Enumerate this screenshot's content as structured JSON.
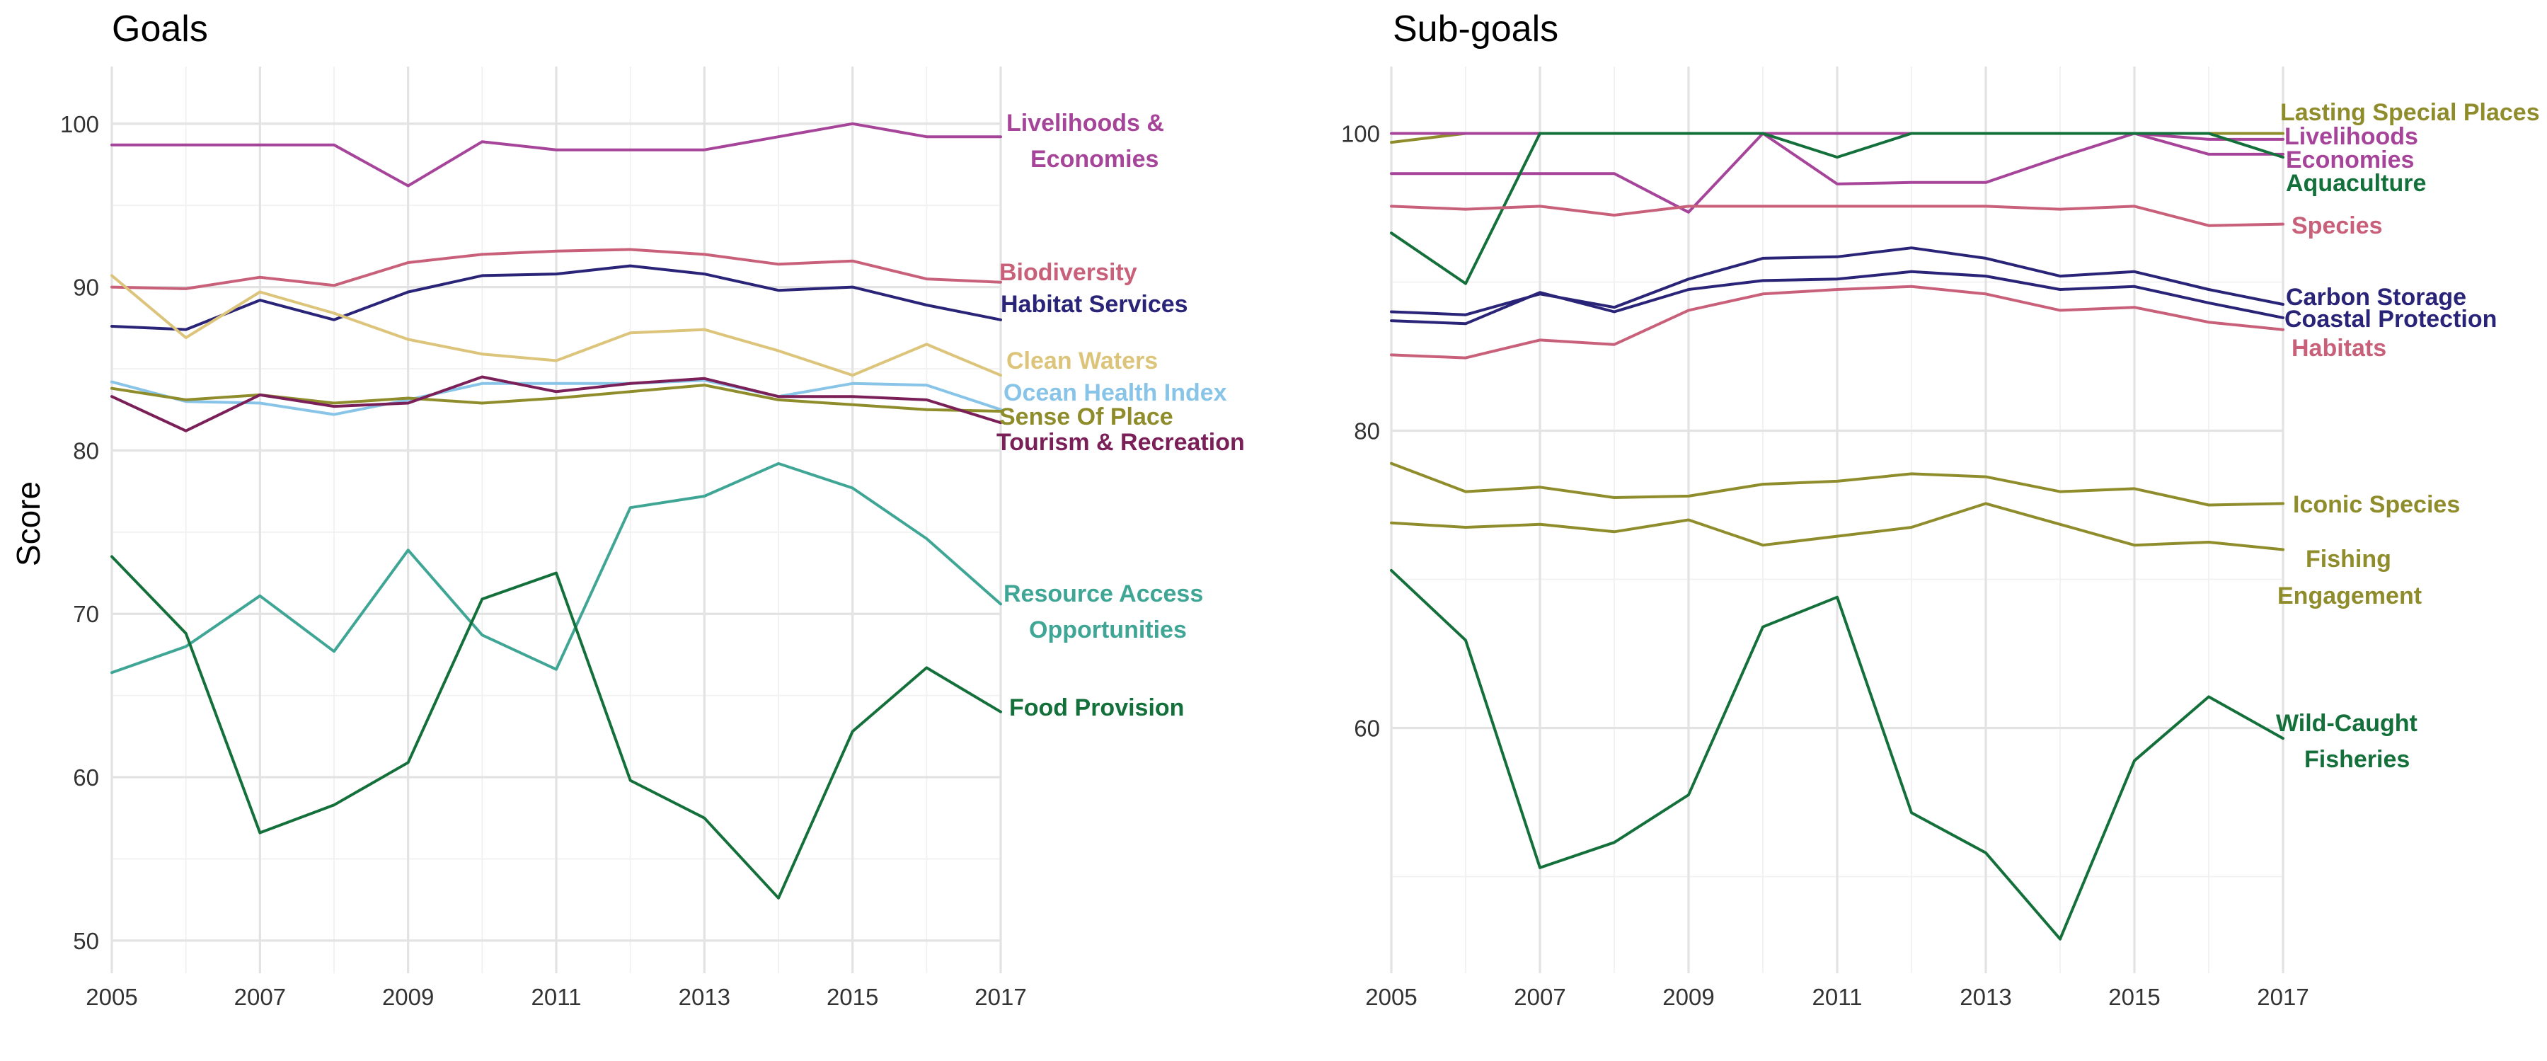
{
  "y_axis_label": "Score",
  "chart_data": [
    {
      "type": "line",
      "title": "Goals",
      "xlabel": "",
      "ylabel": "Score",
      "x": [
        2005,
        2006,
        2007,
        2008,
        2009,
        2010,
        2011,
        2012,
        2013,
        2014,
        2015,
        2016,
        2017
      ],
      "xticks": [
        2005,
        2007,
        2009,
        2011,
        2013,
        2015,
        2017
      ],
      "xtick_labels": [
        "2005",
        "2007",
        "2009",
        "2011",
        "2013",
        "2015",
        "2017"
      ],
      "yticks": [
        50,
        60,
        70,
        80,
        90,
        100
      ],
      "ytick_labels": [
        "50",
        "60",
        "70",
        "80",
        "90",
        "100"
      ],
      "xlim": [
        2005,
        2017
      ],
      "ylim": [
        48,
        103.5
      ],
      "grid": true,
      "legend": "direct labels at right end of lines",
      "series": [
        {
          "name": "Livelihoods & Economies",
          "label_lines": [
            "Livelihoods &",
            "Economies"
          ],
          "color": "#a6449a",
          "values": [
            98.7,
            98.7,
            98.7,
            98.7,
            96.2,
            98.9,
            98.4,
            98.4,
            98.4,
            99.2,
            100,
            99.2,
            99.2
          ]
        },
        {
          "name": "Biodiversity",
          "label_lines": [
            "Biodiversity"
          ],
          "color": "#c9607a",
          "values": [
            90.0,
            89.9,
            90.6,
            90.1,
            91.5,
            92.0,
            92.2,
            92.3,
            92.0,
            91.4,
            91.6,
            90.5,
            90.3
          ]
        },
        {
          "name": "Habitat Services",
          "label_lines": [
            "Habitat Services"
          ],
          "color": "#2a2478",
          "values": [
            87.6,
            87.4,
            89.2,
            88.0,
            89.7,
            90.7,
            90.8,
            91.3,
            90.8,
            89.8,
            90.0,
            88.9,
            88.0
          ]
        },
        {
          "name": "Clean Waters",
          "label_lines": [
            "Clean Waters"
          ],
          "color": "#dcc47a",
          "values": [
            90.7,
            86.9,
            89.7,
            88.4,
            86.8,
            85.9,
            85.5,
            87.2,
            87.4,
            86.1,
            84.6,
            86.5,
            84.6
          ]
        },
        {
          "name": "Ocean Health Index",
          "label_lines": [
            "Ocean Health Index"
          ],
          "color": "#88c4e8",
          "values": [
            84.2,
            83.0,
            82.9,
            82.2,
            83.1,
            84.1,
            84.1,
            84.1,
            84.3,
            83.3,
            84.1,
            84.0,
            82.5
          ]
        },
        {
          "name": "Sense Of Place",
          "label_lines": [
            "Sense Of Place"
          ],
          "color": "#8f8c2c",
          "values": [
            83.8,
            83.1,
            83.4,
            82.9,
            83.2,
            82.9,
            83.2,
            83.6,
            84.0,
            83.1,
            82.8,
            82.5,
            82.4
          ]
        },
        {
          "name": "Tourism & Recreation",
          "label_lines": [
            "Tourism & Recreation"
          ],
          "color": "#7a1f57",
          "values": [
            83.3,
            81.2,
            83.4,
            82.7,
            82.9,
            84.5,
            83.6,
            84.1,
            84.4,
            83.3,
            83.3,
            83.1,
            81.7
          ]
        },
        {
          "name": "Resource Access Opportunities",
          "label_lines": [
            "Resource Access",
            "Opportunities"
          ],
          "color": "#3fa696",
          "values": [
            66.4,
            68.0,
            71.1,
            67.7,
            73.9,
            68.7,
            66.6,
            76.5,
            77.2,
            79.2,
            77.7,
            74.6,
            70.6
          ]
        },
        {
          "name": "Food Provision",
          "label_lines": [
            "Food Provision"
          ],
          "color": "#14703a",
          "values": [
            73.5,
            68.8,
            56.6,
            58.3,
            60.9,
            70.9,
            72.5,
            59.8,
            57.5,
            52.6,
            62.8,
            66.7,
            64.0
          ]
        }
      ]
    },
    {
      "type": "line",
      "title": "Sub-goals",
      "xlabel": "",
      "ylabel": "",
      "x": [
        2005,
        2006,
        2007,
        2008,
        2009,
        2010,
        2011,
        2012,
        2013,
        2014,
        2015,
        2016,
        2017
      ],
      "xticks": [
        2005,
        2007,
        2009,
        2011,
        2013,
        2015,
        2017
      ],
      "xtick_labels": [
        "2005",
        "2007",
        "2009",
        "2011",
        "2013",
        "2015",
        "2017"
      ],
      "yticks": [
        60,
        80,
        100
      ],
      "ytick_labels": [
        "60",
        "80",
        "100"
      ],
      "xlim": [
        2005,
        2017
      ],
      "ylim": [
        43.5,
        104.5
      ],
      "grid": true,
      "legend": "direct labels at right end of lines",
      "series": [
        {
          "name": "Lasting Special Places",
          "label_lines": [
            "Lasting Special Places"
          ],
          "color": "#8f8c2c",
          "values": [
            99.4,
            100,
            100,
            100,
            100,
            100,
            100,
            100,
            100,
            100,
            100,
            100,
            100
          ]
        },
        {
          "name": "Livelihoods",
          "label_lines": [
            "Livelihoods"
          ],
          "color": "#a6449a",
          "values": [
            100,
            100,
            100,
            100,
            100,
            100,
            100,
            100,
            100,
            100,
            100,
            99.6,
            99.6
          ]
        },
        {
          "name": "Economies",
          "label_lines": [
            "Economies"
          ],
          "color": "#a6449a",
          "values": [
            97.3,
            97.3,
            97.3,
            97.3,
            94.7,
            100,
            96.6,
            96.7,
            96.7,
            98.4,
            100,
            98.6,
            98.6
          ]
        },
        {
          "name": "Aquaculture",
          "label_lines": [
            "Aquaculture"
          ],
          "color": "#14703a",
          "values": [
            93.3,
            89.9,
            100,
            100,
            100,
            100,
            98.4,
            100,
            100,
            100,
            100,
            100,
            98.4
          ]
        },
        {
          "name": "Species",
          "label_lines": [
            "Species"
          ],
          "color": "#c9607a",
          "values": [
            95.1,
            94.9,
            95.1,
            94.5,
            95.1,
            95.1,
            95.1,
            95.1,
            95.1,
            94.9,
            95.1,
            93.8,
            93.9
          ]
        },
        {
          "name": "Carbon Storage",
          "label_lines": [
            "Carbon Storage"
          ],
          "color": "#2a2478",
          "values": [
            88.0,
            87.8,
            89.2,
            88.3,
            90.2,
            91.6,
            91.7,
            92.3,
            91.6,
            90.4,
            90.7,
            89.5,
            88.5
          ]
        },
        {
          "name": "Coastal Protection",
          "label_lines": [
            "Coastal Protection"
          ],
          "color": "#2a2478",
          "values": [
            87.4,
            87.2,
            89.3,
            88.0,
            89.5,
            90.1,
            90.2,
            90.7,
            90.4,
            89.5,
            89.7,
            88.6,
            87.6
          ]
        },
        {
          "name": "Habitats",
          "label_lines": [
            "Habitats"
          ],
          "color": "#c9607a",
          "values": [
            85.1,
            84.9,
            86.1,
            85.8,
            88.1,
            89.2,
            89.5,
            89.7,
            89.2,
            88.1,
            88.3,
            87.3,
            86.8
          ]
        },
        {
          "name": "Iconic Species",
          "label_lines": [
            "Iconic Species"
          ],
          "color": "#8f8c2c",
          "values": [
            77.8,
            75.9,
            76.2,
            75.5,
            75.6,
            76.4,
            76.6,
            77.1,
            76.9,
            75.9,
            76.1,
            75.0,
            75.1
          ]
        },
        {
          "name": "Fishing Engagement",
          "label_lines": [
            "Fishing",
            "Engagement"
          ],
          "color": "#8f8c2c",
          "values": [
            73.8,
            73.5,
            73.7,
            73.2,
            74.0,
            72.3,
            72.9,
            73.5,
            75.1,
            73.7,
            72.3,
            72.5,
            72.0
          ]
        },
        {
          "name": "Wild-Caught Fisheries",
          "label_lines": [
            "Wild-Caught",
            "Fisheries"
          ],
          "color": "#14703a",
          "values": [
            70.6,
            65.9,
            50.6,
            52.3,
            55.5,
            66.8,
            68.8,
            54.3,
            51.6,
            45.8,
            57.8,
            62.1,
            59.3
          ]
        }
      ]
    }
  ]
}
